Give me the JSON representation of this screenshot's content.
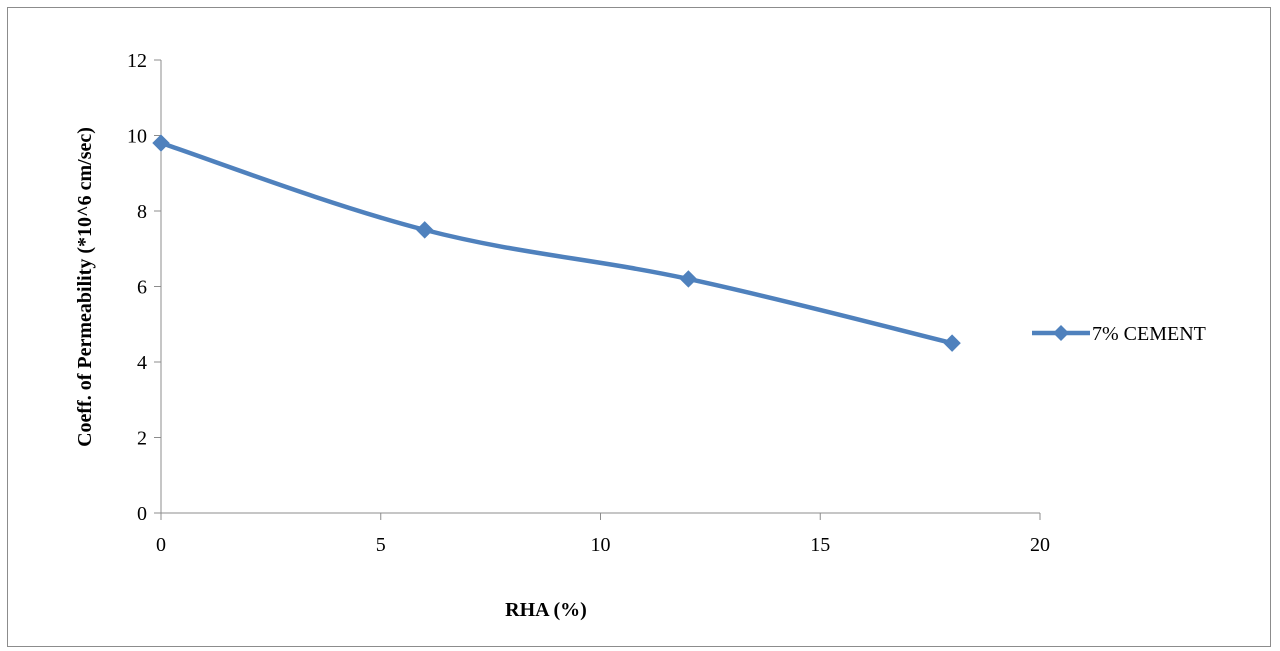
{
  "chart_data": {
    "type": "line",
    "xlabel": "RHA (%)",
    "ylabel": "Coeff. of Permeability (*10^6 cm/sec)",
    "xlim": [
      0,
      20
    ],
    "ylim": [
      0,
      12
    ],
    "xticks": [
      0,
      5,
      10,
      15,
      20
    ],
    "yticks": [
      0,
      2,
      4,
      6,
      8,
      10,
      12
    ],
    "grid": false,
    "legend_position": "right",
    "series": [
      {
        "name": "7% CEMENT",
        "color": "#4f81bd",
        "marker": "diamond",
        "smooth": true,
        "x": [
          0,
          6,
          12,
          18
        ],
        "y": [
          9.8,
          7.5,
          6.2,
          4.5
        ]
      }
    ]
  }
}
